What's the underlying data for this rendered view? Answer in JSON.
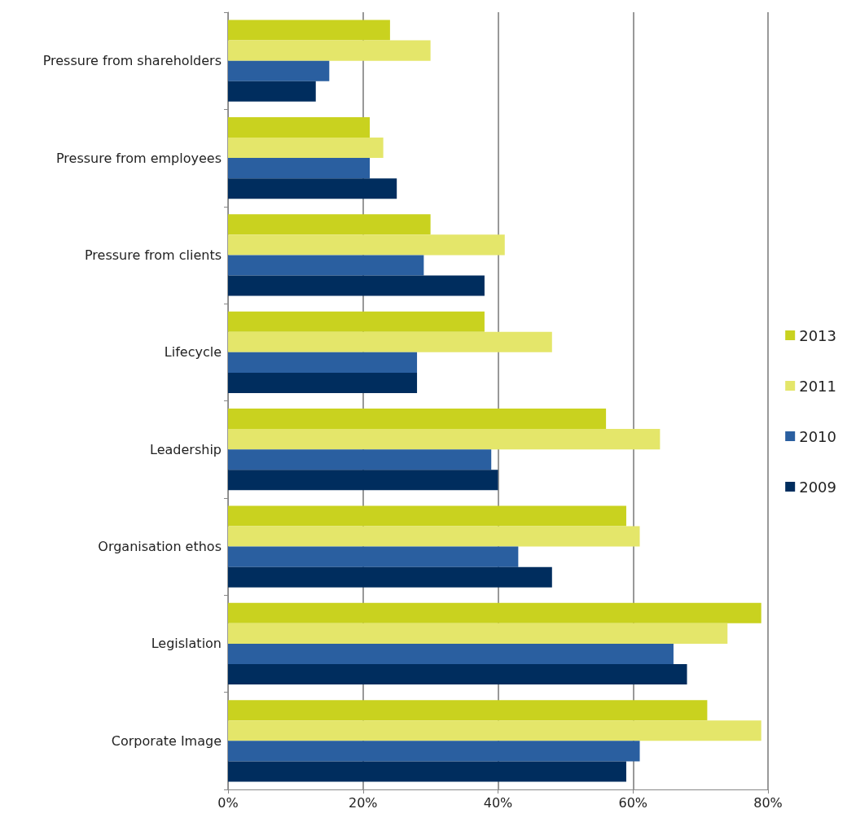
{
  "chart_data": {
    "type": "bar",
    "orientation": "horizontal",
    "categories": [
      "Pressure from shareholders",
      "Pressure from employees",
      "Pressure from clients",
      "Lifecycle",
      "Leadership",
      "Organisation ethos",
      "Legislation",
      "Corporate Image"
    ],
    "series": [
      {
        "name": "2013",
        "color": "#c9d21f",
        "values": [
          24,
          21,
          30,
          38,
          56,
          59,
          79,
          71
        ]
      },
      {
        "name": "2011",
        "color": "#e4e66a",
        "values": [
          30,
          23,
          41,
          48,
          64,
          61,
          74,
          79
        ]
      },
      {
        "name": "2010",
        "color": "#2a5fa0",
        "values": [
          15,
          21,
          29,
          28,
          39,
          43,
          66,
          61
        ]
      },
      {
        "name": "2009",
        "color": "#002d5e",
        "values": [
          13,
          25,
          38,
          28,
          40,
          48,
          68,
          59
        ]
      }
    ],
    "xlim": [
      0,
      80
    ],
    "xticks": [
      {
        "value": 0,
        "label": "0%"
      },
      {
        "value": 20,
        "label": "20%"
      },
      {
        "value": 40,
        "label": "40%"
      },
      {
        "value": 60,
        "label": "60%"
      },
      {
        "value": 80,
        "label": "80%"
      }
    ],
    "grid": "x",
    "legend": "right"
  }
}
